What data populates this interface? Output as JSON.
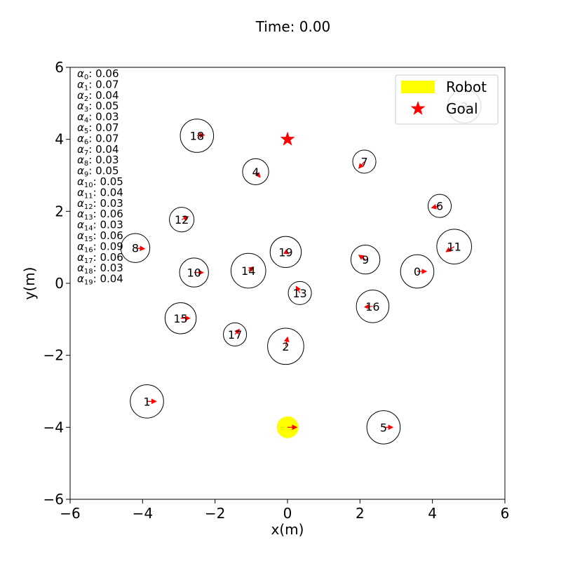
{
  "title": "Time: 0.00",
  "xlabel": "x(m)",
  "ylabel": "y(m)",
  "colors": {
    "robot": "#ffff00",
    "goal": "#ff0000",
    "velocity_arrow": "#ff0000",
    "human_outline": "#000000"
  },
  "legend": {
    "placement": "top-right",
    "robot_label": "Robot",
    "goal_label": "Goal"
  },
  "chart_data": {
    "type": "scatter",
    "title": "Time: 0.00",
    "xlabel": "x(m)",
    "ylabel": "y(m)",
    "xlim": [
      -6,
      6
    ],
    "ylim": [
      -6,
      6
    ],
    "xticks": [
      -6,
      -4,
      -2,
      0,
      2,
      4,
      6
    ],
    "yticks": [
      -6,
      -4,
      -2,
      0,
      2,
      4,
      6
    ],
    "xtick_labels": [
      "−6",
      "−4",
      "−2",
      "0",
      "2",
      "4",
      "6"
    ],
    "ytick_labels": [
      "−6",
      "−4",
      "−2",
      "0",
      "2",
      "4",
      "6"
    ],
    "grid": false,
    "robot": {
      "x": 0.0,
      "y": -4.0,
      "radius": 0.3,
      "vx": 0.25,
      "vy": 0.0
    },
    "goal": {
      "x": 0.0,
      "y": 4.0
    },
    "humans": [
      {
        "id": "0",
        "x": 3.58,
        "y": 0.33,
        "radius": 0.46,
        "vx": 0.25,
        "vy": 0.0
      },
      {
        "id": "1",
        "x": -3.88,
        "y": -3.28,
        "radius": 0.46,
        "vx": 0.25,
        "vy": 0.0
      },
      {
        "id": "2",
        "x": -0.05,
        "y": -1.75,
        "radius": 0.5,
        "vx": 0.05,
        "vy": 0.25
      },
      {
        "id": "3",
        "x": 4.88,
        "y": 4.92,
        "radius": 0.46,
        "vx": 0.0,
        "vy": 0.0
      },
      {
        "id": "4",
        "x": -0.88,
        "y": 3.1,
        "radius": 0.36,
        "vx": 0.12,
        "vy": -0.15
      },
      {
        "id": "5",
        "x": 2.65,
        "y": -4.0,
        "radius": 0.46,
        "vx": 0.25,
        "vy": 0.0
      },
      {
        "id": "6",
        "x": 4.2,
        "y": 2.15,
        "radius": 0.32,
        "vx": -0.22,
        "vy": -0.05
      },
      {
        "id": "7",
        "x": 2.12,
        "y": 3.38,
        "radius": 0.32,
        "vx": -0.15,
        "vy": -0.18
      },
      {
        "id": "8",
        "x": -4.2,
        "y": 0.98,
        "radius": 0.4,
        "vx": 0.25,
        "vy": -0.02
      },
      {
        "id": "9",
        "x": 2.15,
        "y": 0.66,
        "radius": 0.4,
        "vx": -0.18,
        "vy": 0.12
      },
      {
        "id": "10",
        "x": -2.58,
        "y": 0.3,
        "radius": 0.4,
        "vx": 0.25,
        "vy": 0.0
      },
      {
        "id": "11",
        "x": 4.6,
        "y": 1.02,
        "radius": 0.48,
        "vx": -0.22,
        "vy": -0.14
      },
      {
        "id": "12",
        "x": -2.92,
        "y": 1.77,
        "radius": 0.34,
        "vx": 0.18,
        "vy": 0.08
      },
      {
        "id": "13",
        "x": 0.34,
        "y": -0.27,
        "radius": 0.32,
        "vx": -0.1,
        "vy": 0.18
      },
      {
        "id": "14",
        "x": -1.08,
        "y": 0.35,
        "radius": 0.48,
        "vx": 0.14,
        "vy": 0.1
      },
      {
        "id": "15",
        "x": -2.95,
        "y": -0.97,
        "radius": 0.43,
        "vx": 0.25,
        "vy": 0.0
      },
      {
        "id": "16",
        "x": 2.35,
        "y": -0.64,
        "radius": 0.45,
        "vx": -0.22,
        "vy": -0.02
      },
      {
        "id": "17",
        "x": -1.45,
        "y": -1.42,
        "radius": 0.32,
        "vx": 0.12,
        "vy": 0.14
      },
      {
        "id": "18",
        "x": -2.5,
        "y": 4.1,
        "radius": 0.46,
        "vx": 0.2,
        "vy": 0.02
      },
      {
        "id": "19",
        "x": -0.05,
        "y": 0.87,
        "radius": 0.43,
        "vx": 0.08,
        "vy": -0.05
      }
    ],
    "alphas": [
      {
        "label": "α0",
        "value": "0.06"
      },
      {
        "label": "α1",
        "value": "0.07"
      },
      {
        "label": "α2",
        "value": "0.04"
      },
      {
        "label": "α3",
        "value": "0.05"
      },
      {
        "label": "α4",
        "value": "0.03"
      },
      {
        "label": "α5",
        "value": "0.07"
      },
      {
        "label": "α6",
        "value": "0.07"
      },
      {
        "label": "α7",
        "value": "0.04"
      },
      {
        "label": "α8",
        "value": "0.03"
      },
      {
        "label": "α9",
        "value": "0.05"
      },
      {
        "label": "α10",
        "value": "0.05"
      },
      {
        "label": "α11",
        "value": "0.04"
      },
      {
        "label": "α12",
        "value": "0.03"
      },
      {
        "label": "α13",
        "value": "0.06"
      },
      {
        "label": "α14",
        "value": "0.03"
      },
      {
        "label": "α15",
        "value": "0.06"
      },
      {
        "label": "α16",
        "value": "0.09"
      },
      {
        "label": "α17",
        "value": "0.06"
      },
      {
        "label": "α18",
        "value": "0.03"
      },
      {
        "label": "α19",
        "value": "0.04"
      }
    ]
  }
}
